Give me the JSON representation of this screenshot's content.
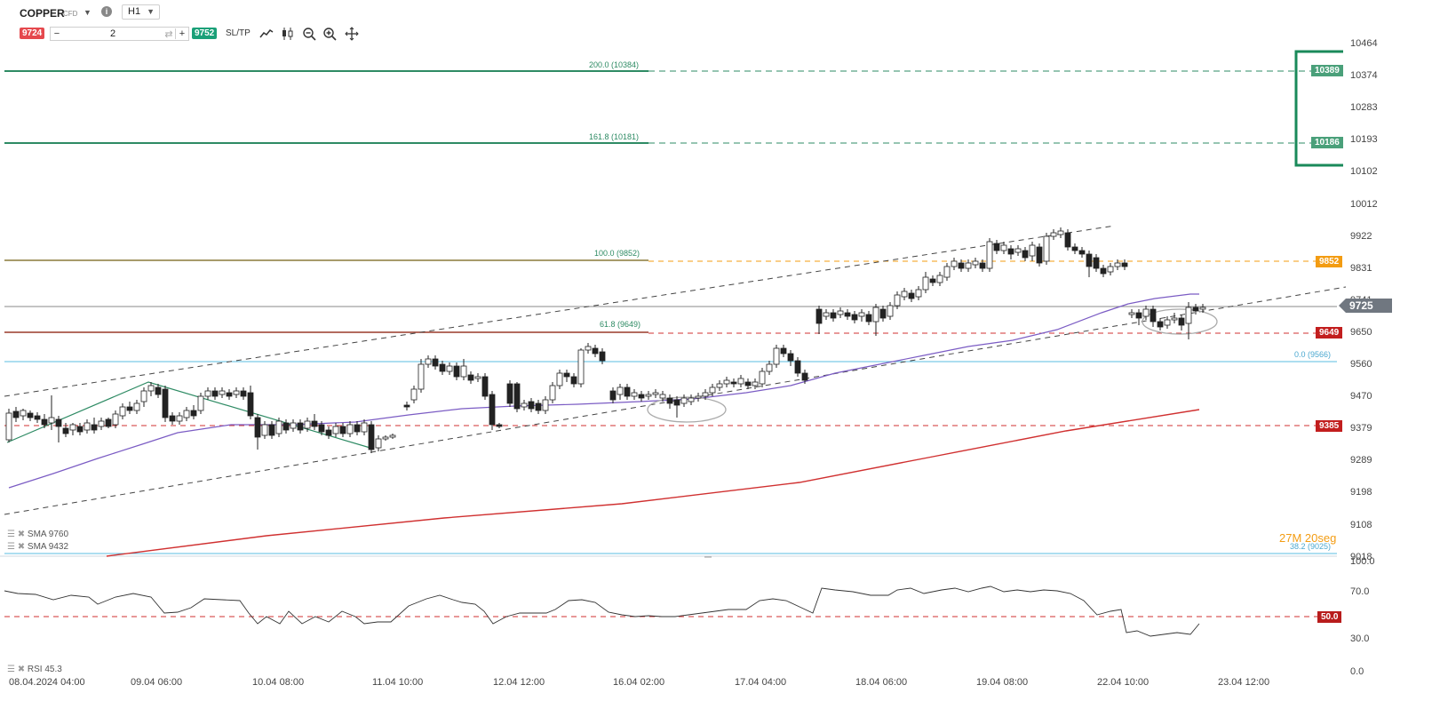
{
  "toolbar": {
    "symbol": "COPPER",
    "symbol_type": "CFD",
    "timeframe": "H1",
    "sell_price": "9724",
    "quantity": "2",
    "buy_price": "9752",
    "sltp_label": "SL/TP",
    "minus": "−",
    "plus": "+",
    "info": "i"
  },
  "y_axis": {
    "ticks": [
      "10464",
      "10374",
      "10283",
      "10193",
      "10102",
      "10012",
      "9922",
      "9831",
      "9741",
      "9650",
      "9560",
      "9470",
      "9379",
      "9289",
      "9198",
      "9108",
      "9018"
    ]
  },
  "x_axis": {
    "ticks": [
      "08.04.2024 04:00",
      "09.04 06:00",
      "10.04 08:00",
      "11.04 10:00",
      "12.04 12:00",
      "16.04 02:00",
      "17.04 04:00",
      "18.04 06:00",
      "19.04 08:00",
      "22.04 10:00",
      "23.04 12:00"
    ]
  },
  "fib_levels": {
    "f200": "200.0 (10384)",
    "f161": "161.8 (10181)",
    "f100": "100.0 (9852)",
    "f61": "61.8 (9649)",
    "f0": "0.0 (9566)",
    "f38": "38.2 (9025)"
  },
  "price_tags": {
    "t10389": "10389",
    "t10186": "10186",
    "t9852": "9852",
    "t9725": "9725",
    "t9649": "9649",
    "t9385": "9385",
    "rsi50": "50.0"
  },
  "indicators": {
    "sma1": "SMA 9760",
    "sma2": "SMA 9432",
    "rsi": "RSI 45.3"
  },
  "timer": {
    "minutes": "27M",
    "seconds": "20seg"
  },
  "rsi_axis": {
    "ticks": [
      "100.0",
      "70.0",
      "30.0",
      "0.0"
    ]
  },
  "colors": {
    "bull": "#ffffff",
    "bear": "#222222",
    "sell": "#e5484d",
    "buy": "#1aa078",
    "fib_green": "#2e8b64",
    "orange": "#f39c12",
    "red_line": "#d03030",
    "sma_purple": "#7b5cc4",
    "sma_red": "#d03030",
    "cyan": "#5bbde0"
  }
}
